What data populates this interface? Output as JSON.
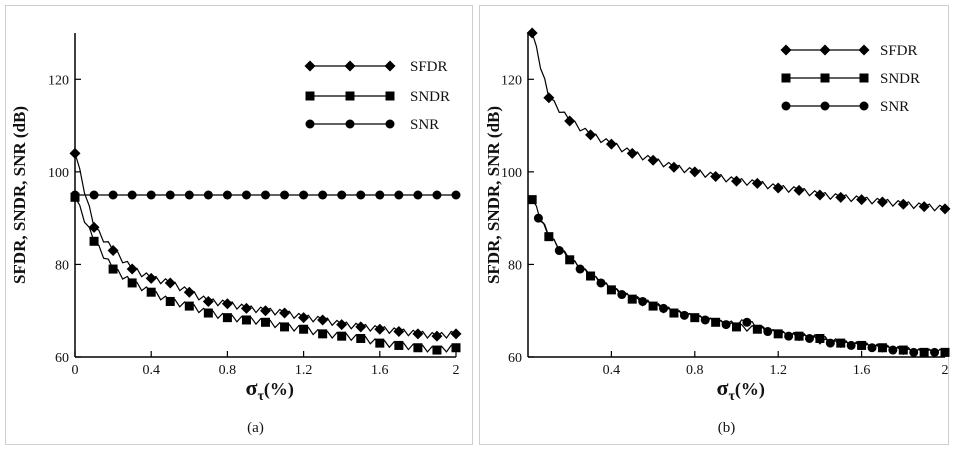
{
  "chart_data": [
    {
      "panel": "(a)",
      "type": "line",
      "xlabel_symbol": "σ",
      "xlabel_subscript": "τ",
      "xlabel_unit": "(%)",
      "ylabel": "SFDR, SNDR, SNR (dB)",
      "xlim": [
        0,
        2
      ],
      "ylim": [
        60,
        130
      ],
      "xticks": [
        "0",
        "0.4",
        "0.8",
        "1.2",
        "1.6",
        "2"
      ],
      "yticks": [
        "60",
        "80",
        "100",
        "120"
      ],
      "legend_position": "top-right",
      "series": [
        {
          "name": "SFDR",
          "marker": "diamond",
          "x": [
            0,
            0.1,
            0.2,
            0.3,
            0.4,
            0.5,
            0.6,
            0.7,
            0.8,
            0.9,
            1.0,
            1.1,
            1.2,
            1.3,
            1.4,
            1.5,
            1.6,
            1.7,
            1.8,
            1.9,
            2.0
          ],
          "y": [
            104,
            88,
            83,
            79,
            77,
            76,
            74,
            72,
            71.5,
            70.5,
            70,
            69.5,
            68.5,
            68,
            67,
            66.5,
            66,
            65.5,
            65,
            64.5,
            65
          ]
        },
        {
          "name": "SNDR",
          "marker": "square",
          "x": [
            0,
            0.1,
            0.2,
            0.3,
            0.4,
            0.5,
            0.6,
            0.7,
            0.8,
            0.9,
            1.0,
            1.1,
            1.2,
            1.3,
            1.4,
            1.5,
            1.6,
            1.7,
            1.8,
            1.9,
            2.0
          ],
          "y": [
            94.5,
            85,
            79,
            76,
            74,
            72,
            71,
            69.5,
            68.5,
            68,
            67.5,
            66.5,
            66,
            65,
            64.5,
            64,
            63,
            62.5,
            62,
            61.5,
            62
          ]
        },
        {
          "name": "SNR",
          "marker": "circle",
          "x": [
            0,
            0.1,
            0.2,
            0.3,
            0.4,
            0.5,
            0.6,
            0.7,
            0.8,
            0.9,
            1.0,
            1.1,
            1.2,
            1.3,
            1.4,
            1.5,
            1.6,
            1.7,
            1.8,
            1.9,
            2.0
          ],
          "y": [
            95,
            95,
            95,
            95,
            95,
            95,
            95,
            95,
            95,
            95,
            95,
            95,
            95,
            95,
            95,
            95,
            95,
            95,
            95,
            95,
            95
          ]
        }
      ]
    },
    {
      "panel": "(b)",
      "type": "line",
      "xlabel_symbol": "σ",
      "xlabel_subscript": "τ",
      "xlabel_unit": "(%)",
      "ylabel": "SFDR, SNDR, SNR (dB)",
      "xlim": [
        0,
        2
      ],
      "ylim": [
        60,
        130
      ],
      "xticks": [
        "0.4",
        "0.8",
        "1.2",
        "1.6",
        "2"
      ],
      "yticks": [
        "60",
        "80",
        "100",
        "120"
      ],
      "legend_position": "top-right",
      "series": [
        {
          "name": "SFDR",
          "marker": "diamond",
          "x": [
            0.02,
            0.1,
            0.2,
            0.3,
            0.4,
            0.5,
            0.6,
            0.7,
            0.8,
            0.9,
            1.0,
            1.1,
            1.2,
            1.3,
            1.4,
            1.5,
            1.6,
            1.7,
            1.8,
            1.9,
            2.0
          ],
          "y": [
            130,
            116,
            111,
            108,
            106,
            104,
            102.5,
            101,
            100,
            99,
            98,
            97.5,
            96.5,
            96,
            95,
            94.5,
            94,
            93.5,
            93,
            92.5,
            92
          ]
        },
        {
          "name": "SNDR",
          "marker": "square",
          "x": [
            0.02,
            0.1,
            0.2,
            0.3,
            0.4,
            0.5,
            0.6,
            0.7,
            0.8,
            0.9,
            1.0,
            1.1,
            1.2,
            1.3,
            1.4,
            1.5,
            1.6,
            1.7,
            1.8,
            1.9,
            2.0
          ],
          "y": [
            94,
            86,
            81,
            77.5,
            74.5,
            72.5,
            71,
            69.5,
            68.5,
            67.5,
            66.5,
            66,
            65,
            64.5,
            64,
            63,
            62.5,
            62,
            61.5,
            61,
            61
          ]
        },
        {
          "name": "SNR",
          "marker": "circle",
          "x": [
            0.05,
            0.15,
            0.25,
            0.35,
            0.45,
            0.55,
            0.65,
            0.75,
            0.85,
            0.95,
            1.05,
            1.15,
            1.25,
            1.35,
            1.45,
            1.55,
            1.65,
            1.75,
            1.85,
            1.95
          ],
          "y": [
            90,
            83,
            79,
            76,
            73.5,
            72,
            70.5,
            69,
            68,
            67,
            67.5,
            65.5,
            64.5,
            64,
            63,
            62.5,
            62,
            61.5,
            61,
            61
          ]
        }
      ]
    }
  ]
}
